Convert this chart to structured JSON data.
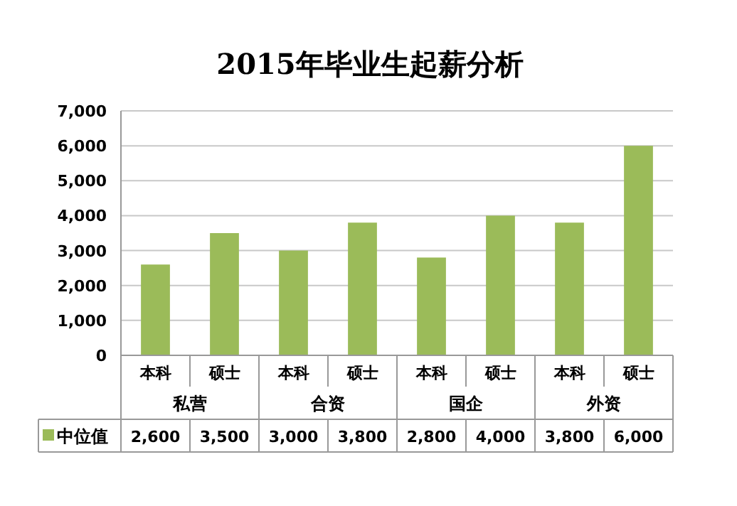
{
  "chart_data": {
    "type": "bar",
    "title": "2015年毕业生起薪分析",
    "categories": [
      "本科",
      "硕士",
      "本科",
      "硕士",
      "本科",
      "硕士",
      "本科",
      "硕士"
    ],
    "annotations": [
      "私营",
      "合资",
      "国企",
      "外资"
    ],
    "series": [
      {
        "name": "中位值",
        "color": "#9bbb59",
        "values": [
          2600,
          3500,
          3000,
          3800,
          2800,
          4000,
          3800,
          6000
        ],
        "value_labels": [
          "2,600",
          "3,500",
          "3,000",
          "3,800",
          "2,800",
          "4,000",
          "3,800",
          "6,000"
        ]
      }
    ],
    "ylim": [
      0,
      7000
    ],
    "yticks": [
      {
        "value": 0,
        "label": "0"
      },
      {
        "value": 1000,
        "label": "1,000"
      },
      {
        "value": 2000,
        "label": "2,000"
      },
      {
        "value": 3000,
        "label": "3,000"
      },
      {
        "value": 4000,
        "label": "4,000"
      },
      {
        "value": 5000,
        "label": "5,000"
      },
      {
        "value": 6000,
        "label": "6,000"
      },
      {
        "value": 7000,
        "label": "7,000"
      }
    ],
    "grid": "y",
    "legend": "bottom"
  }
}
